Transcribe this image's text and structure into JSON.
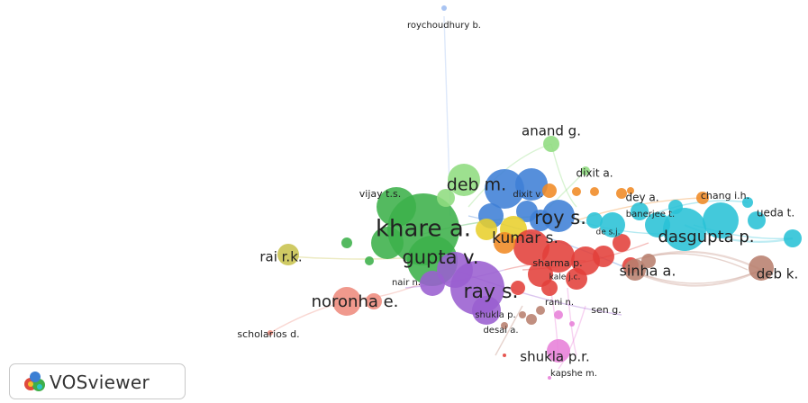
{
  "app": {
    "name": "VOSviewer",
    "logo_icon": "vosviewer-logo-icon"
  },
  "network": {
    "clusters": [
      {
        "id": "green",
        "color": "#3cb04a"
      },
      {
        "id": "blue",
        "color": "#3f7fd6"
      },
      {
        "id": "orange",
        "color": "#f08a24"
      },
      {
        "id": "cyan",
        "color": "#29c1d6"
      },
      {
        "id": "red",
        "color": "#e2403a"
      },
      {
        "id": "purple",
        "color": "#9a5fd0"
      },
      {
        "id": "brown",
        "color": "#b87f6e"
      },
      {
        "id": "pink",
        "color": "#e77fd8"
      },
      {
        "id": "salmon",
        "color": "#ee8b7d"
      },
      {
        "id": "olive",
        "color": "#c8c34e"
      },
      {
        "id": "lightblue",
        "color": "#9dbcf0"
      },
      {
        "id": "lightgreen",
        "color": "#8fdc7f"
      },
      {
        "id": "yellow",
        "color": "#e8cf2c"
      }
    ],
    "authors": [
      {
        "label": "roychoudhury b.",
        "cluster": "lightblue"
      },
      {
        "label": "anand g.",
        "cluster": "lightgreen"
      },
      {
        "label": "dixit a.",
        "cluster": "lightgreen"
      },
      {
        "label": "deb m.",
        "cluster": "lightgreen"
      },
      {
        "label": "dixit v.",
        "cluster": "orange"
      },
      {
        "label": "dey a.",
        "cluster": "orange"
      },
      {
        "label": "chang i.h.",
        "cluster": "orange"
      },
      {
        "label": "vijay t.s.",
        "cluster": "green"
      },
      {
        "label": "khare a.",
        "cluster": "green"
      },
      {
        "label": "roy s.",
        "cluster": "blue"
      },
      {
        "label": "banerjee t.",
        "cluster": "cyan"
      },
      {
        "label": "ueda t.",
        "cluster": "cyan"
      },
      {
        "label": "de s.j.",
        "cluster": "cyan"
      },
      {
        "label": "dasgupta p.",
        "cluster": "cyan"
      },
      {
        "label": "kumar s.",
        "cluster": "red"
      },
      {
        "label": "rai r.k.",
        "cluster": "olive"
      },
      {
        "label": "gupta v.",
        "cluster": "green"
      },
      {
        "label": "sharma p.",
        "cluster": "red"
      },
      {
        "label": "kale j.c.",
        "cluster": "red"
      },
      {
        "label": "sinha a.",
        "cluster": "brown"
      },
      {
        "label": "deb k.",
        "cluster": "brown"
      },
      {
        "label": "nair n.",
        "cluster": "purple"
      },
      {
        "label": "ray s.",
        "cluster": "purple"
      },
      {
        "label": "noronha e.",
        "cluster": "salmon"
      },
      {
        "label": "rani n.",
        "cluster": "red"
      },
      {
        "label": "sen g.",
        "cluster": "brown"
      },
      {
        "label": "shukla p.",
        "cluster": "purple"
      },
      {
        "label": "desai a.",
        "cluster": "brown"
      },
      {
        "label": "scholarios d.",
        "cluster": "salmon"
      },
      {
        "label": "shukla p.r.",
        "cluster": "pink"
      },
      {
        "label": "kapshe m.",
        "cluster": "pink"
      }
    ]
  }
}
